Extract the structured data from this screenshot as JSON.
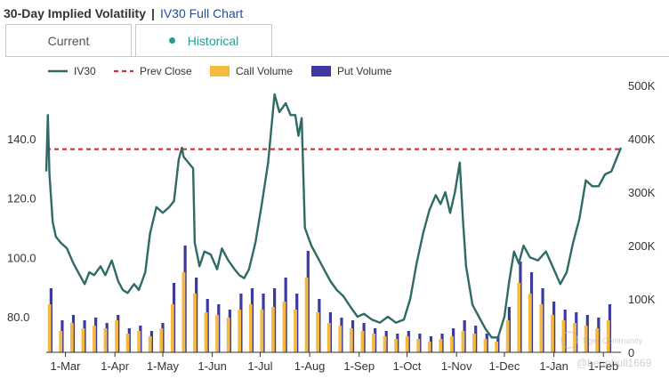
{
  "header": {
    "title": "30-Day Implied Volatility",
    "separator": "|",
    "link": "IV30 Full Chart"
  },
  "tabs": [
    {
      "label": "Current",
      "active": false
    },
    {
      "label": "Historical",
      "active": true
    }
  ],
  "watermark": {
    "line1": "Tiger Community",
    "line2": "@beanbull1669"
  },
  "colors": {
    "iv": "#2e6b66",
    "prev": "#d62f2f",
    "call": "#f5b93f",
    "put": "#3a3aa0",
    "accent": "#2a9d8f"
  },
  "chart_data": {
    "type": "line",
    "legend": [
      "IV30",
      "Prev Close",
      "Call Volume",
      "Put Volume"
    ],
    "x_tick_labels": [
      "1-Mar",
      "1-Apr",
      "1-May",
      "1-Jun",
      "1-Jul",
      "1-Aug",
      "1-Sep",
      "1-Oct",
      "1-Nov",
      "1-Dec",
      "1-Jan",
      "1-Feb"
    ],
    "x_range": [
      "2023-02-17",
      "2024-02-12"
    ],
    "y_left": {
      "ticks": [
        80,
        100,
        120,
        140
      ],
      "tick_labels": [
        "80.0",
        "100.0",
        "120.0",
        "140.0"
      ],
      "range": [
        68,
        158
      ]
    },
    "y_right": {
      "ticks": [
        0,
        100000,
        200000,
        300000,
        400000,
        500000
      ],
      "tick_labels": [
        "0",
        "100K",
        "200K",
        "300K",
        "400K",
        "500K"
      ],
      "range": [
        0,
        500000
      ]
    },
    "prev_close": 136.5,
    "iv30": {
      "name": "IV30",
      "points": [
        [
          "2023-02-17",
          129
        ],
        [
          "2023-02-18",
          148
        ],
        [
          "2023-02-19",
          128
        ],
        [
          "2023-02-21",
          112
        ],
        [
          "2023-02-23",
          107
        ],
        [
          "2023-02-26",
          105
        ],
        [
          "2023-03-02",
          103
        ],
        [
          "2023-03-06",
          98
        ],
        [
          "2023-03-10",
          94
        ],
        [
          "2023-03-13",
          91
        ],
        [
          "2023-03-16",
          95
        ],
        [
          "2023-03-19",
          94
        ],
        [
          "2023-03-23",
          97
        ],
        [
          "2023-03-26",
          94
        ],
        [
          "2023-03-30",
          99
        ],
        [
          "2023-04-03",
          92
        ],
        [
          "2023-04-06",
          89
        ],
        [
          "2023-04-09",
          88
        ],
        [
          "2023-04-13",
          91
        ],
        [
          "2023-04-16",
          89
        ],
        [
          "2023-04-20",
          95
        ],
        [
          "2023-04-23",
          108
        ],
        [
          "2023-04-27",
          117
        ],
        [
          "2023-05-01",
          115
        ],
        [
          "2023-05-05",
          117
        ],
        [
          "2023-05-08",
          119
        ],
        [
          "2023-05-11",
          133
        ],
        [
          "2023-05-13",
          137
        ],
        [
          "2023-05-14",
          134
        ],
        [
          "2023-05-17",
          132
        ],
        [
          "2023-05-20",
          130
        ],
        [
          "2023-05-21",
          105
        ],
        [
          "2023-05-24",
          97
        ],
        [
          "2023-05-27",
          102
        ],
        [
          "2023-05-31",
          101
        ],
        [
          "2023-06-04",
          96
        ],
        [
          "2023-06-07",
          103
        ],
        [
          "2023-06-11",
          99
        ],
        [
          "2023-06-15",
          96
        ],
        [
          "2023-06-18",
          94
        ],
        [
          "2023-06-21",
          93
        ],
        [
          "2023-06-24",
          96
        ],
        [
          "2023-06-28",
          105
        ],
        [
          "2023-07-02",
          118
        ],
        [
          "2023-07-06",
          132
        ],
        [
          "2023-07-10",
          155
        ],
        [
          "2023-07-13",
          149
        ],
        [
          "2023-07-17",
          152
        ],
        [
          "2023-07-20",
          148
        ],
        [
          "2023-07-23",
          148
        ],
        [
          "2023-07-25",
          141
        ],
        [
          "2023-07-27",
          147
        ],
        [
          "2023-07-29",
          110
        ],
        [
          "2023-08-02",
          104
        ],
        [
          "2023-08-06",
          100
        ],
        [
          "2023-08-10",
          96
        ],
        [
          "2023-08-14",
          92
        ],
        [
          "2023-08-18",
          89
        ],
        [
          "2023-08-22",
          87
        ],
        [
          "2023-08-27",
          83
        ],
        [
          "2023-08-31",
          80
        ],
        [
          "2023-09-04",
          81
        ],
        [
          "2023-09-09",
          79
        ],
        [
          "2023-09-14",
          78
        ],
        [
          "2023-09-19",
          80
        ],
        [
          "2023-09-24",
          78
        ],
        [
          "2023-09-29",
          79
        ],
        [
          "2023-10-03",
          86
        ],
        [
          "2023-10-07",
          98
        ],
        [
          "2023-10-11",
          108
        ],
        [
          "2023-10-15",
          116
        ],
        [
          "2023-10-19",
          121
        ],
        [
          "2023-10-22",
          118
        ],
        [
          "2023-10-25",
          122
        ],
        [
          "2023-10-28",
          115
        ],
        [
          "2023-10-31",
          122
        ],
        [
          "2023-11-03",
          132
        ],
        [
          "2023-11-05",
          113
        ],
        [
          "2023-11-07",
          97
        ],
        [
          "2023-11-11",
          84
        ],
        [
          "2023-11-15",
          80
        ],
        [
          "2023-11-19",
          76
        ],
        [
          "2023-11-23",
          73
        ],
        [
          "2023-11-27",
          73
        ],
        [
          "2023-12-01",
          80
        ],
        [
          "2023-12-04",
          92
        ],
        [
          "2023-12-07",
          102
        ],
        [
          "2023-12-10",
          98
        ],
        [
          "2023-12-13",
          104
        ],
        [
          "2023-12-17",
          100
        ],
        [
          "2023-12-22",
          99
        ],
        [
          "2023-12-27",
          102
        ],
        [
          "2024-01-01",
          96
        ],
        [
          "2024-01-05",
          91
        ],
        [
          "2024-01-09",
          95
        ],
        [
          "2024-01-13",
          105
        ],
        [
          "2024-01-17",
          113
        ],
        [
          "2024-01-21",
          126
        ],
        [
          "2024-01-25",
          124
        ],
        [
          "2024-01-29",
          124
        ],
        [
          "2024-02-02",
          128
        ],
        [
          "2024-02-06",
          129
        ],
        [
          "2024-02-12",
          137
        ]
      ]
    },
    "call_volume": {
      "name": "Call Volume",
      "dates": [
        "2023-02-20",
        "2023-02-27",
        "2023-03-06",
        "2023-03-13",
        "2023-03-20",
        "2023-03-27",
        "2023-04-03",
        "2023-04-10",
        "2023-04-17",
        "2023-04-24",
        "2023-05-01",
        "2023-05-08",
        "2023-05-15",
        "2023-05-22",
        "2023-05-29",
        "2023-06-05",
        "2023-06-12",
        "2023-06-19",
        "2023-06-26",
        "2023-07-03",
        "2023-07-10",
        "2023-07-17",
        "2023-07-24",
        "2023-07-31",
        "2023-08-07",
        "2023-08-14",
        "2023-08-21",
        "2023-08-28",
        "2023-09-04",
        "2023-09-11",
        "2023-09-18",
        "2023-09-25",
        "2023-10-02",
        "2023-10-09",
        "2023-10-16",
        "2023-10-23",
        "2023-10-30",
        "2023-11-06",
        "2023-11-13",
        "2023-11-20",
        "2023-11-27",
        "2023-12-04",
        "2023-12-11",
        "2023-12-18",
        "2023-12-25",
        "2024-01-01",
        "2024-01-08",
        "2024-01-15",
        "2024-01-22",
        "2024-01-29",
        "2024-02-05"
      ],
      "values": [
        90000,
        40000,
        55000,
        45000,
        50000,
        45000,
        60000,
        35000,
        40000,
        30000,
        45000,
        90000,
        150000,
        110000,
        75000,
        70000,
        65000,
        80000,
        90000,
        80000,
        85000,
        95000,
        80000,
        140000,
        75000,
        55000,
        50000,
        45000,
        40000,
        35000,
        30000,
        25000,
        30000,
        25000,
        20000,
        25000,
        30000,
        40000,
        35000,
        25000,
        20000,
        60000,
        130000,
        110000,
        90000,
        70000,
        60000,
        55000,
        50000,
        45000,
        60000
      ]
    },
    "put_volume": {
      "name": "Put Volume",
      "dates": [
        "2023-02-20",
        "2023-02-27",
        "2023-03-06",
        "2023-03-13",
        "2023-03-20",
        "2023-03-27",
        "2023-04-03",
        "2023-04-10",
        "2023-04-17",
        "2023-04-24",
        "2023-05-01",
        "2023-05-08",
        "2023-05-15",
        "2023-05-22",
        "2023-05-29",
        "2023-06-05",
        "2023-06-12",
        "2023-06-19",
        "2023-06-26",
        "2023-07-03",
        "2023-07-10",
        "2023-07-17",
        "2023-07-24",
        "2023-07-31",
        "2023-08-07",
        "2023-08-14",
        "2023-08-21",
        "2023-08-28",
        "2023-09-04",
        "2023-09-11",
        "2023-09-18",
        "2023-09-25",
        "2023-10-02",
        "2023-10-09",
        "2023-10-16",
        "2023-10-23",
        "2023-10-30",
        "2023-11-06",
        "2023-11-13",
        "2023-11-20",
        "2023-11-27",
        "2023-12-04",
        "2023-12-11",
        "2023-12-18",
        "2023-12-25",
        "2024-01-01",
        "2024-01-08",
        "2024-01-15",
        "2024-01-22",
        "2024-01-29",
        "2024-02-05"
      ],
      "values": [
        120000,
        60000,
        70000,
        60000,
        65000,
        55000,
        70000,
        45000,
        50000,
        40000,
        55000,
        130000,
        200000,
        140000,
        100000,
        90000,
        80000,
        110000,
        120000,
        110000,
        120000,
        140000,
        110000,
        190000,
        100000,
        75000,
        65000,
        60000,
        55000,
        45000,
        40000,
        35000,
        40000,
        35000,
        30000,
        35000,
        45000,
        60000,
        50000,
        35000,
        30000,
        85000,
        170000,
        150000,
        120000,
        95000,
        80000,
        75000,
        70000,
        65000,
        90000
      ]
    }
  }
}
